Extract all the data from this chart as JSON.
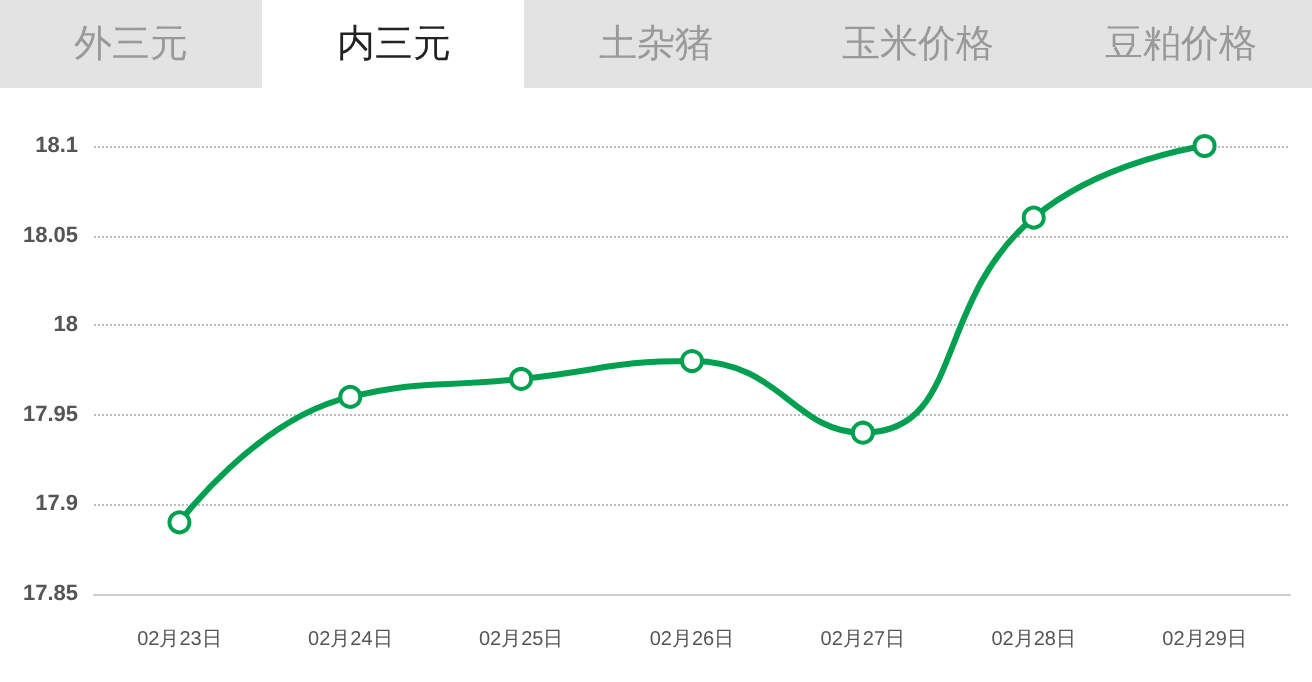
{
  "chart_data": {
    "type": "line",
    "annotations": [
      "外三元",
      "内三元",
      "土杂猪",
      "玉米价格",
      "豆粕价格"
    ],
    "categories": [
      "02月23日",
      "02月24日",
      "02月25日",
      "02月26日",
      "02月27日",
      "02月28日",
      "02月29日"
    ],
    "series": [
      {
        "color": "#00a050",
        "values": [
          17.89,
          17.96,
          17.97,
          17.98,
          17.94,
          18.06,
          18.1
        ]
      }
    ],
    "ylim": [
      17.85,
      18.1
    ],
    "yticks": [
      17.85,
      17.9,
      17.95,
      18,
      18.05,
      18.1
    ],
    "grid": "y",
    "marker": "circle",
    "line_style": "solid"
  }
}
